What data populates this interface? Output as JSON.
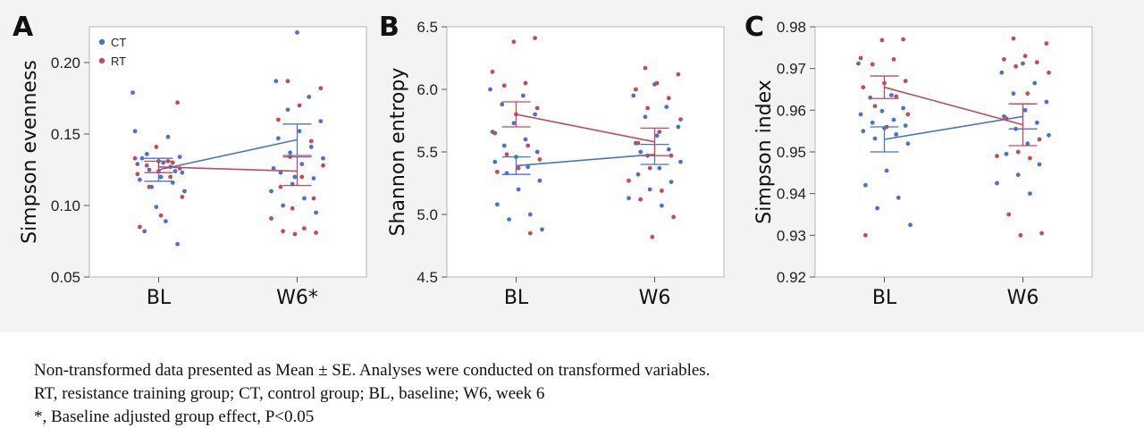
{
  "colors": {
    "CT": "#4a72c8",
    "RT": "#c24a5e"
  },
  "legend": [
    {
      "label": "CT",
      "color": "#4a72c8"
    },
    {
      "label": "RT",
      "color": "#c24a5e"
    }
  ],
  "chart_data": [
    {
      "panel": "A",
      "type": "scatter",
      "ylabel": "Simpson evenness",
      "categories": [
        "BL",
        "W6*"
      ],
      "ylim": [
        0.05,
        0.225
      ],
      "yticks": [
        0.05,
        0.1,
        0.15,
        0.2
      ],
      "ytick_labels": [
        "0.05",
        "0.10",
        "0.15",
        "0.20"
      ],
      "series": [
        {
          "name": "CT",
          "mean": [
            0.125,
            0.146
          ],
          "se": [
            0.008,
            0.011
          ],
          "points": [
            [
              0.179,
              0.089,
              0.082,
              0.073,
              0.099,
              0.152,
              0.148,
              0.136,
              0.134,
              0.131,
              0.129,
              0.127,
              0.125,
              0.123,
              0.12,
              0.118,
              0.116,
              0.113,
              0.11,
              0.13,
              0.133,
              0.124
            ],
            [
              0.221,
              0.187,
              0.176,
              0.167,
              0.159,
              0.152,
              0.147,
              0.141,
              0.137,
              0.133,
              0.129,
              0.123,
              0.119,
              0.115,
              0.11,
              0.105,
              0.1,
              0.095,
              0.12,
              0.126
            ]
          ]
        },
        {
          "name": "RT",
          "mean": [
            0.127,
            0.124
          ],
          "se": [
            0.004,
            0.01
          ],
          "points": [
            [
              0.172,
              0.141,
              0.133,
              0.131,
              0.128,
              0.126,
              0.124,
              0.122,
              0.12,
              0.113,
              0.106,
              0.093,
              0.085,
              0.13
            ],
            [
              0.187,
              0.182,
              0.17,
              0.16,
              0.145,
              0.134,
              0.128,
              0.12,
              0.113,
              0.105,
              0.098,
              0.091,
              0.084,
              0.082,
              0.081,
              0.08
            ]
          ]
        }
      ]
    },
    {
      "panel": "B",
      "type": "scatter",
      "ylabel": "Shannon entropy",
      "categories": [
        "BL",
        "W6"
      ],
      "ylim": [
        4.5,
        6.5
      ],
      "yticks": [
        4.5,
        5.0,
        5.5,
        6.0,
        6.5
      ],
      "ytick_labels": [
        "4.5",
        "5.0",
        "5.5",
        "6.0",
        "6.5"
      ],
      "series": [
        {
          "name": "CT",
          "mean": [
            5.39,
            5.48
          ],
          "se": [
            0.07,
            0.08
          ],
          "points": [
            [
              6.0,
              5.95,
              5.88,
              5.8,
              5.73,
              5.66,
              5.6,
              5.55,
              5.5,
              5.46,
              5.42,
              5.38,
              5.33,
              5.27,
              5.2,
              5.08,
              5.0,
              4.96,
              4.88
            ],
            [
              6.04,
              5.95,
              5.86,
              5.78,
              5.7,
              5.63,
              5.57,
              5.52,
              5.47,
              5.42,
              5.37,
              5.32,
              5.26,
              5.2,
              5.13,
              5.07,
              5.5
            ]
          ]
        },
        {
          "name": "RT",
          "mean": [
            5.8,
            5.58
          ],
          "se": [
            0.1,
            0.11
          ],
          "points": [
            [
              6.41,
              6.38,
              6.14,
              6.05,
              6.03,
              5.85,
              5.8,
              5.65,
              5.55,
              5.48,
              5.44,
              5.37,
              5.34,
              4.85
            ],
            [
              6.17,
              6.12,
              6.05,
              6.0,
              5.93,
              5.85,
              5.76,
              5.66,
              5.57,
              5.47,
              5.37,
              5.27,
              5.19,
              5.12,
              4.98,
              4.82
            ]
          ]
        }
      ]
    },
    {
      "panel": "C",
      "type": "scatter",
      "ylabel": "Simpson index",
      "categories": [
        "BL",
        "W6"
      ],
      "ylim": [
        0.92,
        0.98
      ],
      "yticks": [
        0.92,
        0.93,
        0.94,
        0.95,
        0.96,
        0.97,
        0.98
      ],
      "ytick_labels": [
        "0.92",
        "0.93",
        "0.94",
        "0.95",
        "0.96",
        "0.97",
        "0.98"
      ],
      "series": [
        {
          "name": "CT",
          "mean": [
            0.953,
            0.9585
          ],
          "se": [
            0.003,
            0.003
          ],
          "points": [
            [
              0.9712,
              0.9636,
              0.963,
              0.9605,
              0.9598,
              0.959,
              0.9577,
              0.957,
              0.9563,
              0.9557,
              0.955,
              0.9542,
              0.9532,
              0.952,
              0.9455,
              0.942,
              0.939,
              0.9365,
              0.9325
            ],
            [
              0.9712,
              0.969,
              0.9665,
              0.964,
              0.962,
              0.96,
              0.9585,
              0.957,
              0.9555,
              0.954,
              0.952,
              0.9495,
              0.947,
              0.9445,
              0.9425,
              0.94
            ]
          ]
        },
        {
          "name": "RT",
          "mean": [
            0.9655,
            0.9565
          ],
          "se": [
            0.0027,
            0.005
          ],
          "points": [
            [
              0.977,
              0.9768,
              0.9725,
              0.9722,
              0.971,
              0.967,
              0.9665,
              0.9655,
              0.9633,
              0.961,
              0.959,
              0.956,
              0.93
            ],
            [
              0.9772,
              0.976,
              0.973,
              0.9722,
              0.9715,
              0.9705,
              0.969,
              0.964,
              0.958,
              0.953,
              0.95,
              0.949,
              0.9485,
              0.935,
              0.9305,
              0.93
            ]
          ]
        }
      ]
    }
  ],
  "caption": {
    "line1": "Non-transformed data presented as Mean ± SE. Analyses were conducted on transformed variables.",
    "line2": "RT, resistance training group; CT, control group; BL, baseline; W6, week 6",
    "line3": "*, Baseline adjusted group effect, P<0.05"
  }
}
